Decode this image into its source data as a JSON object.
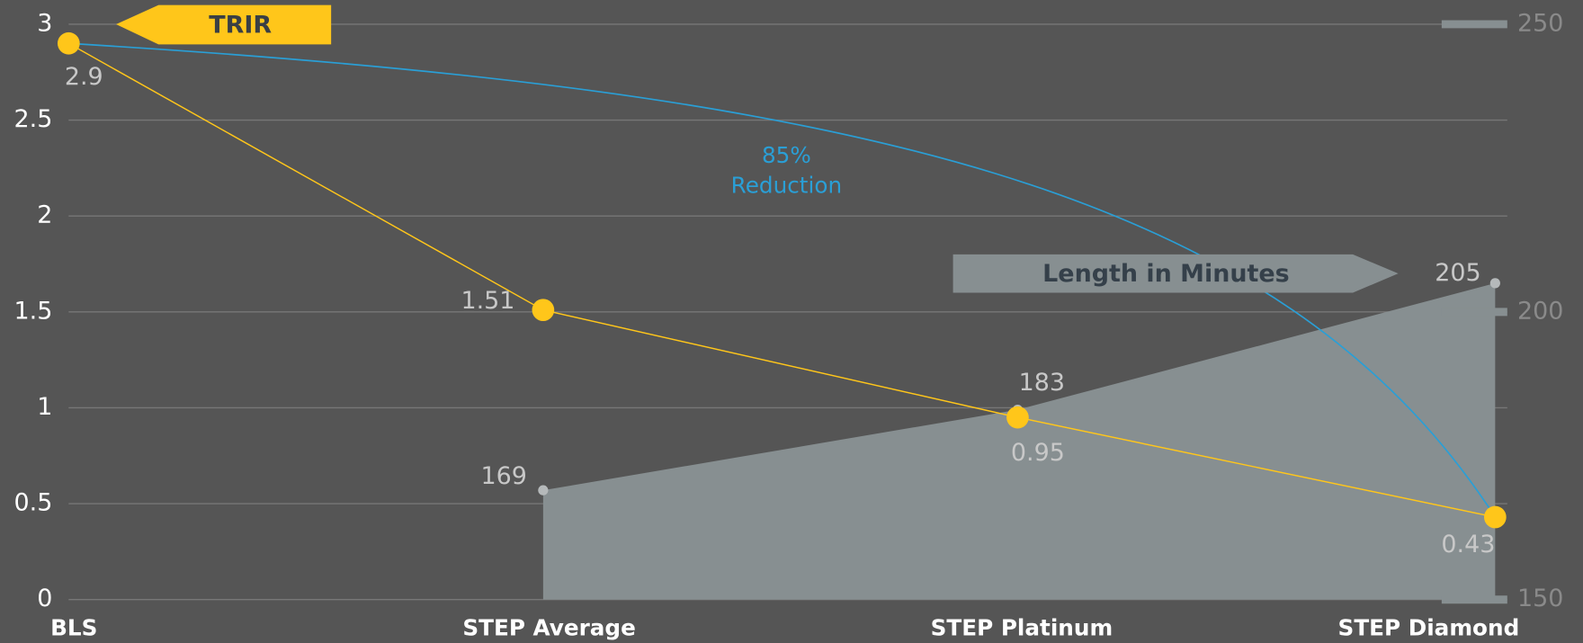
{
  "chart_data": {
    "type": "line",
    "categories": [
      "BLS",
      "STEP Average",
      "STEP Platinum",
      "STEP Diamond"
    ],
    "series": [
      {
        "name": "TRIR",
        "color": "#ffc61a",
        "values": [
          2.9,
          1.51,
          0.95,
          0.43
        ]
      },
      {
        "name": "Length in Minutes",
        "color": "#878f91",
        "axis": "y2",
        "type": "area",
        "values": [
          null,
          169,
          183,
          205
        ]
      }
    ],
    "ylim": [
      0,
      3
    ],
    "yticks": [
      0,
      0.5,
      1,
      1.5,
      2,
      2.5,
      3
    ],
    "y2lim": [
      150,
      250
    ],
    "y2ticks": [
      150,
      200,
      250
    ],
    "annotation": {
      "lines": [
        "85%",
        "Reduction"
      ],
      "color": "#2a9fd6"
    },
    "grid": true
  }
}
